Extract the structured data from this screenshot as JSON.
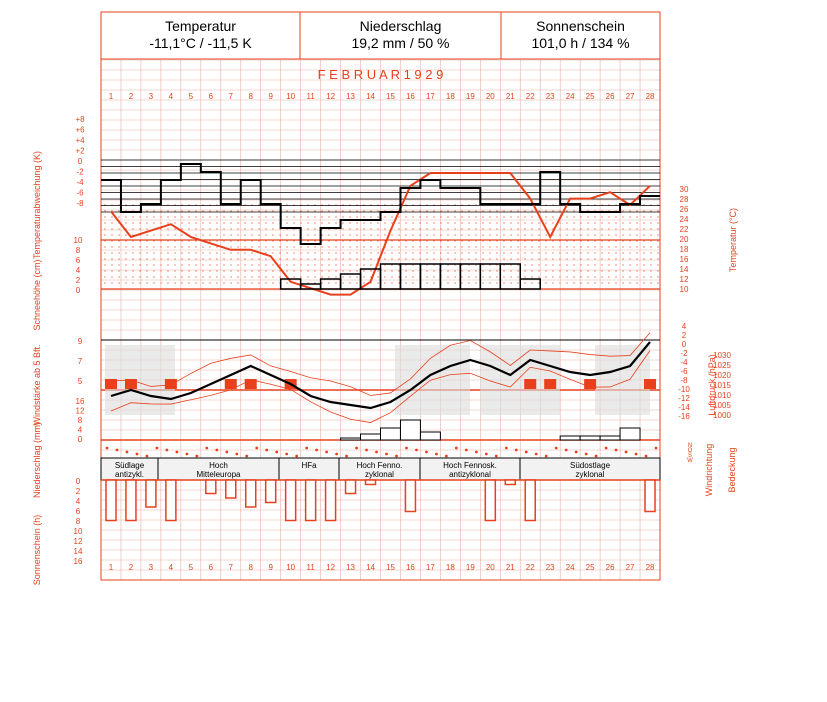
{
  "header": {
    "temperature": {
      "label": "Temperatur",
      "value": "-11,1°C / -11,5 K"
    },
    "precipitation": {
      "label": "Niederschlag",
      "value": "19,2 mm / 50 %"
    },
    "sunshine": {
      "label": "Sonnenschein",
      "value": "101,0 h / 134 %"
    }
  },
  "month_title": "F E B R U A R    1 9 2 9",
  "colors": {
    "accent": "#e8401c",
    "grid": "#e6b0a6",
    "black": "#000000",
    "shade": "#dcdcdc"
  },
  "chart_data": {
    "type": "line",
    "days": [
      1,
      2,
      3,
      4,
      5,
      6,
      7,
      8,
      9,
      10,
      11,
      12,
      13,
      14,
      15,
      16,
      17,
      18,
      19,
      20,
      21,
      22,
      23,
      24,
      25,
      26,
      27,
      28
    ],
    "axis_labels": {
      "temp_anomaly": "Temperaturabweichung (K)",
      "temperature": "Temperatur (°C)",
      "snow": "Schneehöhe (cm)",
      "wind": "Windstärke ab 5 Bft.",
      "pressure": "Luftdruck (hPa)",
      "precip": "Niederschlag (mm)",
      "wind_dir": "Windrichtung",
      "cloud": "Bedeckung",
      "sun": "Sonnenschein (h)"
    },
    "ticks": {
      "anomaly": [
        "+8",
        "+6",
        "+4",
        "+2",
        "0",
        "-2",
        "-4",
        "-6",
        "-8"
      ],
      "temperature_right": [
        "30",
        "28",
        "26",
        "24",
        "22",
        "20",
        "18",
        "16",
        "14",
        "12",
        "10"
      ],
      "temperature_left": [
        "10",
        "8",
        "6",
        "4",
        "2",
        "0"
      ],
      "snow": [
        "10",
        "8",
        "6",
        "4",
        "2",
        "0"
      ],
      "wind_left": [
        "9",
        "7",
        "5"
      ],
      "pressure_mid": [
        "4",
        "2",
        "0",
        "-2",
        "-4",
        "-6",
        "-8",
        "-10",
        "-12",
        "-14",
        "-16"
      ],
      "pressure_hpa": [
        "1030",
        "1025",
        "1020",
        "1015",
        "1010",
        "1005",
        "1000"
      ],
      "precip": [
        "16",
        "12",
        "8",
        "4",
        "0"
      ],
      "sun": [
        "0",
        "2",
        "4",
        "6",
        "8",
        "10",
        "12",
        "14",
        "16"
      ]
    },
    "wind_dir_labels": [
      "N",
      "O",
      "S",
      "W"
    ],
    "series": [
      {
        "name": "Temperatur",
        "values": [
          -2,
          -10,
          -8,
          -6,
          -10,
          -12,
          -14,
          -14,
          -16,
          -24,
          -26,
          -28,
          -28,
          -24,
          -8,
          6,
          10,
          10,
          10,
          10,
          10,
          2,
          -10,
          2,
          2,
          4,
          0,
          6
        ]
      },
      {
        "name": "Temperaturabweichung",
        "values": [
          0,
          -4,
          -3,
          0,
          2,
          1,
          -3,
          0,
          -3,
          -6,
          -8,
          -6,
          -5,
          -5,
          -4,
          -1,
          0,
          -1,
          -1,
          -3,
          -3,
          -3,
          1,
          -3,
          -4,
          -4,
          -3,
          -2
        ]
      },
      {
        "name": "Schneehöhe",
        "values": [
          0,
          0,
          0,
          0,
          0,
          0,
          0,
          0,
          0,
          2,
          1,
          2,
          3,
          4,
          5,
          5,
          5,
          5,
          5,
          5,
          5,
          2,
          0,
          0,
          0,
          0,
          0,
          0
        ]
      },
      {
        "name": "Luftdruck",
        "values": [
          1008,
          1010,
          1008,
          1007,
          1009,
          1012,
          1015,
          1018,
          1015,
          1012,
          1008,
          1006,
          1005,
          1004,
          1006,
          1010,
          1015,
          1018,
          1020,
          1018,
          1015,
          1020,
          1018,
          1016,
          1015,
          1016,
          1018,
          1026
        ]
      },
      {
        "name": "Niederschlag",
        "values": [
          0,
          0,
          0,
          0,
          0,
          0,
          0,
          0,
          0,
          0,
          0,
          0,
          0.5,
          1.5,
          3,
          5,
          2,
          0,
          0,
          0,
          0,
          0,
          0,
          1,
          1,
          1,
          3,
          0
        ]
      },
      {
        "name": "Sonnenschein",
        "values": [
          9,
          9,
          6,
          9,
          0,
          3,
          4,
          6,
          5,
          9,
          9,
          9,
          3,
          1,
          0,
          7,
          0,
          0,
          0,
          9,
          1,
          9,
          0,
          0,
          0,
          0,
          0,
          7
        ]
      }
    ],
    "weather_types": [
      {
        "text": "Südlage antizykl."
      },
      {
        "text": "Hoch Mitteleuropa"
      },
      {
        "text": "HFa"
      },
      {
        "text": "Hoch Fenno. zyklonal"
      },
      {
        "text": "Hoch Fennosk. antizyklonal"
      },
      {
        "text": "Südostlage zyklonal"
      }
    ]
  }
}
